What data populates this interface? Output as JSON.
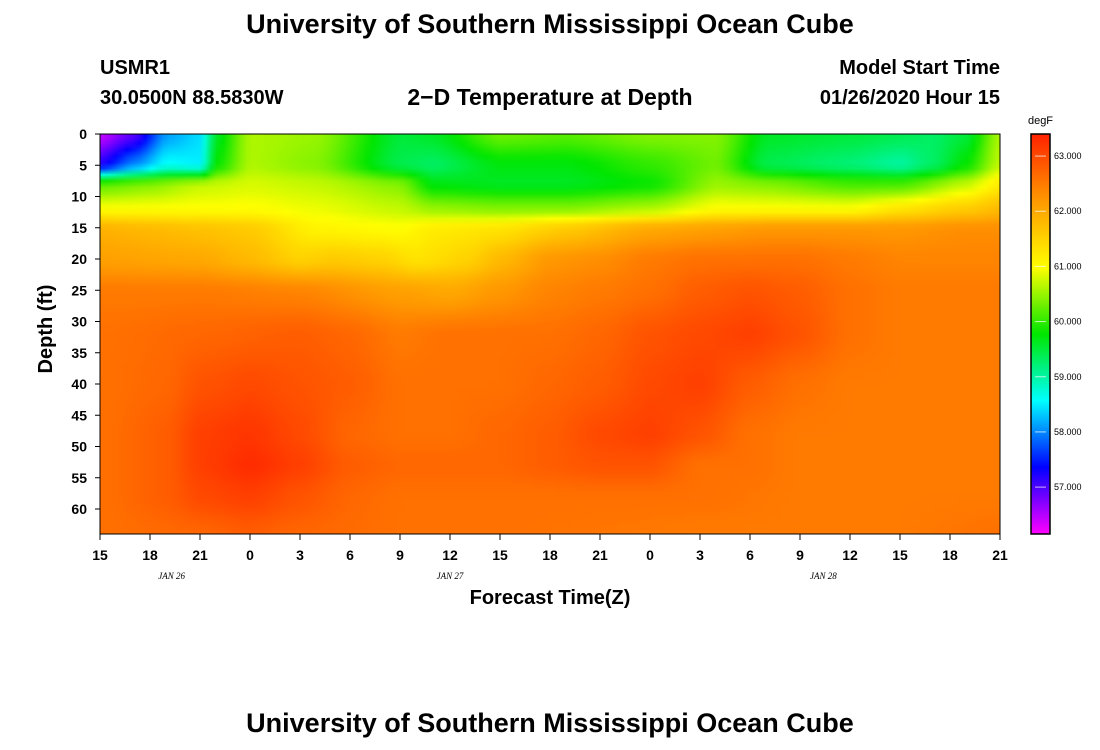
{
  "header": {
    "title": "University of Southern Mississippi Ocean Cube",
    "station": "USMR1",
    "coords": "30.0500N 88.5830W",
    "plot_title": "2−D Temperature at Depth",
    "start_label": "Model Start Time",
    "start_time": "01/26/2020 Hour 15"
  },
  "footer": {
    "title": "University of Southern Mississippi Ocean Cube"
  },
  "chart_data": {
    "type": "heatmap",
    "xlabel": "Forecast Time(Z)",
    "ylabel": "Depth (ft)",
    "x_tick_labels": [
      "15",
      "18",
      "21",
      "0",
      "3",
      "6",
      "9",
      "12",
      "15",
      "18",
      "21",
      "0",
      "3",
      "6",
      "9",
      "12",
      "15",
      "18",
      "21"
    ],
    "x_hours": [
      0,
      3,
      6,
      9,
      12,
      15,
      18,
      21,
      24,
      27,
      30,
      33,
      36,
      39,
      42,
      45,
      48,
      51,
      54
    ],
    "x_range_hours": [
      0,
      54
    ],
    "date_labels": [
      {
        "text": "JAN  26",
        "hour": 4.3
      },
      {
        "text": "JAN  27",
        "hour": 21
      },
      {
        "text": "JAN  28",
        "hour": 43.4
      }
    ],
    "y_ticks": [
      0,
      5,
      10,
      15,
      20,
      25,
      30,
      35,
      40,
      45,
      50,
      55,
      60
    ],
    "y_range": [
      0,
      64
    ],
    "y_reversed": true,
    "colorbar": {
      "unit": "degF",
      "range": [
        56.15,
        63.4
      ],
      "ticks": [
        57,
        58,
        59,
        60,
        61,
        62,
        63
      ],
      "tick_labels": [
        "57.000",
        "58.000",
        "59.000",
        "60.000",
        "61.000",
        "62.000",
        "63.000"
      ],
      "colors": [
        "#ff00ff",
        "#0000ff",
        "#00ffff",
        "#00e600",
        "#ffff00",
        "#ff9900",
        "#ff2200"
      ]
    },
    "layers": [
      {
        "depth": 0,
        "hours": [
          0,
          2,
          4,
          6,
          7,
          9,
          13,
          18,
          20,
          24,
          28,
          33,
          37,
          40,
          45,
          48,
          50,
          52,
          54
        ],
        "temps": [
          56.4,
          56.9,
          58.1,
          58.4,
          59.6,
          60.6,
          60.5,
          59.5,
          59.6,
          60.3,
          60.2,
          60.4,
          60.4,
          59.6,
          59.5,
          59.4,
          59.3,
          59.5,
          60.6
        ]
      },
      {
        "depth": 5,
        "hours": [
          0,
          2,
          4,
          6,
          7,
          9,
          13,
          18,
          20,
          24,
          28,
          33,
          37,
          40,
          45,
          48,
          50,
          52,
          54
        ],
        "temps": [
          57.2,
          58.0,
          58.6,
          58.5,
          59.8,
          60.6,
          60.4,
          59.4,
          59.3,
          59.7,
          59.7,
          60.0,
          60.3,
          59.4,
          59.2,
          59.0,
          59.3,
          59.8,
          60.7
        ]
      },
      {
        "depth": 8,
        "hours": [
          0,
          3,
          6,
          9,
          13,
          18,
          20,
          24,
          28,
          33,
          37,
          40,
          45,
          48,
          52,
          54
        ],
        "temps": [
          60.2,
          60.4,
          60.7,
          60.8,
          60.7,
          60.4,
          59.7,
          59.6,
          59.6,
          59.8,
          60.5,
          60.4,
          60.1,
          60.1,
          60.7,
          61.2
        ]
      },
      {
        "depth": 12,
        "hours": [
          0,
          3,
          6,
          9,
          13,
          18,
          20,
          24,
          28,
          33,
          37,
          40,
          45,
          48,
          52,
          54
        ],
        "temps": [
          61.0,
          61.0,
          61.0,
          61.0,
          60.9,
          60.7,
          60.5,
          60.4,
          60.4,
          60.6,
          61.0,
          61.0,
          61.0,
          61.3,
          61.6,
          61.8
        ]
      },
      {
        "depth": 15,
        "hours": [
          0,
          3,
          6,
          9,
          13,
          18,
          20,
          24,
          28,
          33,
          37,
          40,
          45,
          48,
          52,
          54
        ],
        "temps": [
          61.9,
          61.8,
          61.7,
          61.6,
          61.1,
          61.0,
          61.2,
          61.3,
          61.6,
          62.0,
          62.1,
          62.2,
          62.2,
          62.2,
          62.3,
          62.3
        ]
      },
      {
        "depth": 20,
        "hours": [
          0,
          6,
          9,
          12,
          14,
          17,
          19,
          22,
          24,
          27,
          30,
          33,
          36,
          39,
          42,
          45,
          48,
          54
        ],
        "temps": [
          62.1,
          62.0,
          61.8,
          61.5,
          61.6,
          61.5,
          61.3,
          61.5,
          61.8,
          62.2,
          62.3,
          62.5,
          62.6,
          62.6,
          62.6,
          62.5,
          62.4,
          62.4
        ]
      },
      {
        "depth": 25,
        "hours": [
          0,
          6,
          12,
          18,
          21,
          24,
          27,
          30,
          33,
          36,
          39,
          42,
          45,
          48,
          54
        ],
        "temps": [
          62.5,
          62.5,
          62.4,
          62.1,
          62.0,
          62.2,
          62.4,
          62.5,
          62.6,
          62.8,
          62.9,
          62.8,
          62.6,
          62.5,
          62.5
        ]
      },
      {
        "depth": 32,
        "hours": [
          0,
          6,
          12,
          15,
          18,
          21,
          24,
          27,
          30,
          33,
          36,
          39,
          42,
          45,
          48,
          54
        ],
        "temps": [
          62.6,
          62.7,
          62.8,
          62.7,
          62.5,
          62.6,
          62.6,
          62.6,
          62.7,
          62.9,
          63.0,
          63.1,
          62.9,
          62.6,
          62.5,
          62.5
        ]
      },
      {
        "depth": 40,
        "hours": [
          0,
          4,
          6,
          9,
          12,
          15,
          18,
          21,
          24,
          27,
          30,
          33,
          36,
          39,
          42,
          45,
          48,
          54
        ],
        "temps": [
          62.6,
          62.7,
          62.9,
          63.0,
          62.9,
          62.8,
          62.6,
          62.6,
          62.6,
          62.7,
          62.8,
          63.0,
          63.1,
          62.8,
          62.6,
          62.5,
          62.5,
          62.5
        ]
      },
      {
        "depth": 48,
        "hours": [
          0,
          4,
          6,
          9,
          12,
          15,
          18,
          21,
          24,
          27,
          30,
          33,
          36,
          39,
          42,
          48,
          54
        ],
        "temps": [
          62.6,
          62.8,
          63.1,
          63.2,
          63.0,
          62.7,
          62.6,
          62.6,
          62.7,
          62.8,
          63.0,
          63.1,
          62.9,
          62.6,
          62.5,
          62.5,
          62.5
        ]
      },
      {
        "depth": 53,
        "hours": [
          0,
          4,
          6,
          9,
          12,
          15,
          18,
          21,
          24,
          27,
          30,
          33,
          36,
          39,
          42,
          48,
          54
        ],
        "temps": [
          62.6,
          62.8,
          63.1,
          63.3,
          63.1,
          62.8,
          62.7,
          62.7,
          62.7,
          62.8,
          62.9,
          62.9,
          62.6,
          62.6,
          62.5,
          62.5,
          62.5
        ]
      },
      {
        "depth": 58,
        "hours": [
          0,
          4,
          6,
          9,
          12,
          15,
          18,
          24,
          30,
          33,
          36,
          42,
          48,
          54
        ],
        "temps": [
          62.6,
          62.8,
          63.0,
          63.1,
          62.9,
          62.7,
          62.6,
          62.6,
          62.6,
          62.6,
          62.6,
          62.5,
          62.5,
          62.5
        ]
      },
      {
        "depth": 64,
        "hours": [
          0,
          6,
          9,
          12,
          18,
          24,
          36,
          48,
          54
        ],
        "temps": [
          62.6,
          62.7,
          62.8,
          62.7,
          62.6,
          62.6,
          62.5,
          62.5,
          62.6
        ]
      }
    ]
  }
}
